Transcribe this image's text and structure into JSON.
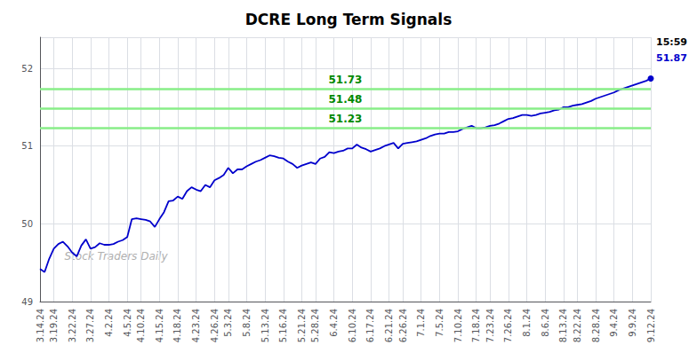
{
  "chart_data": {
    "type": "line",
    "title": "DCRE Long Term Signals",
    "color": "#0000cc",
    "categories": [
      "3.14.24",
      null,
      null,
      "3.19.24",
      null,
      null,
      null,
      "3.22.24",
      null,
      null,
      null,
      "3.27.24",
      null,
      null,
      null,
      "4.2.24",
      null,
      null,
      null,
      "4.5.24",
      null,
      null,
      "4.10.24",
      null,
      null,
      null,
      "4.15.24",
      null,
      null,
      null,
      "4.18.24",
      null,
      null,
      null,
      "4.23.24",
      null,
      null,
      null,
      "4.26.24",
      null,
      null,
      "5.3.24",
      null,
      null,
      null,
      "5.8.24",
      null,
      null,
      null,
      "5.13.24",
      null,
      null,
      null,
      "5.16.24",
      null,
      null,
      null,
      "5.21.24",
      null,
      null,
      "5.28.24",
      null,
      null,
      null,
      "6.4.24",
      null,
      null,
      null,
      "6.10.24",
      null,
      null,
      null,
      "6.17.24",
      null,
      null,
      null,
      "6.21.24",
      null,
      null,
      "6.26.24",
      null,
      null,
      null,
      "7.1.24",
      null,
      null,
      null,
      "7.5.24",
      null,
      null,
      null,
      "7.10.24",
      null,
      null,
      null,
      "7.18.24",
      null,
      null,
      "7.23.24",
      null,
      null,
      null,
      "7.26.24",
      null,
      null,
      null,
      "8.1.24",
      null,
      null,
      null,
      "8.6.24",
      null,
      null,
      null,
      "8.13.24",
      null,
      null,
      "8.22.24",
      null,
      null,
      null,
      "8.28.24",
      null,
      null,
      null,
      "9.4.24",
      null,
      null,
      null,
      "9.9.24",
      null,
      null,
      null,
      "9.12.24"
    ],
    "values": [
      49.42,
      49.38,
      49.55,
      49.68,
      49.74,
      49.77,
      49.71,
      49.63,
      49.58,
      49.72,
      49.8,
      49.68,
      49.7,
      49.75,
      49.73,
      49.73,
      49.74,
      49.77,
      49.79,
      49.83,
      50.06,
      50.07,
      50.06,
      50.05,
      50.03,
      49.96,
      50.06,
      50.15,
      50.29,
      50.3,
      50.35,
      50.32,
      50.42,
      50.47,
      50.44,
      50.42,
      50.5,
      50.47,
      50.56,
      50.59,
      50.63,
      50.72,
      50.65,
      50.7,
      50.7,
      50.74,
      50.77,
      50.8,
      50.82,
      50.85,
      50.88,
      50.87,
      50.85,
      50.84,
      50.8,
      50.77,
      50.72,
      50.75,
      50.77,
      50.79,
      50.77,
      50.84,
      50.86,
      50.92,
      50.91,
      50.93,
      50.94,
      50.97,
      50.97,
      51.02,
      50.98,
      50.96,
      50.93,
      50.95,
      50.97,
      51.0,
      51.02,
      51.04,
      50.97,
      51.03,
      51.04,
      51.05,
      51.06,
      51.08,
      51.1,
      51.13,
      51.15,
      51.16,
      51.16,
      51.18,
      51.18,
      51.19,
      51.22,
      51.24,
      51.26,
      51.23,
      51.23,
      51.24,
      51.26,
      51.27,
      51.29,
      51.32,
      51.35,
      51.36,
      51.38,
      51.4,
      51.4,
      51.39,
      51.4,
      51.42,
      51.43,
      51.44,
      51.46,
      51.47,
      51.5,
      51.5,
      51.52,
      51.53,
      51.54,
      51.56,
      51.58,
      51.61,
      51.63,
      51.65,
      51.67,
      51.69,
      51.72,
      51.74,
      51.76,
      51.78,
      51.8,
      51.82,
      51.84,
      51.87
    ],
    "ylim": [
      49.0,
      52.4
    ],
    "yticks": [
      49,
      50,
      51,
      52
    ],
    "grid": true,
    "hlines": [
      {
        "value": 51.23,
        "label": "51.23",
        "color": "#88ee88",
        "label_color": "#008800"
      },
      {
        "value": 51.48,
        "label": "51.48",
        "color": "#88ee88",
        "label_color": "#008800"
      },
      {
        "value": 51.73,
        "label": "51.73",
        "color": "#88ee88",
        "label_color": "#008800"
      }
    ],
    "watermark": {
      "text": "Stock Traders Daily",
      "color": "#b0b0b0"
    },
    "annotations": [
      {
        "text": "15:59",
        "color": "#000000"
      },
      {
        "text": "51.87",
        "color": "#0000cc"
      }
    ]
  }
}
